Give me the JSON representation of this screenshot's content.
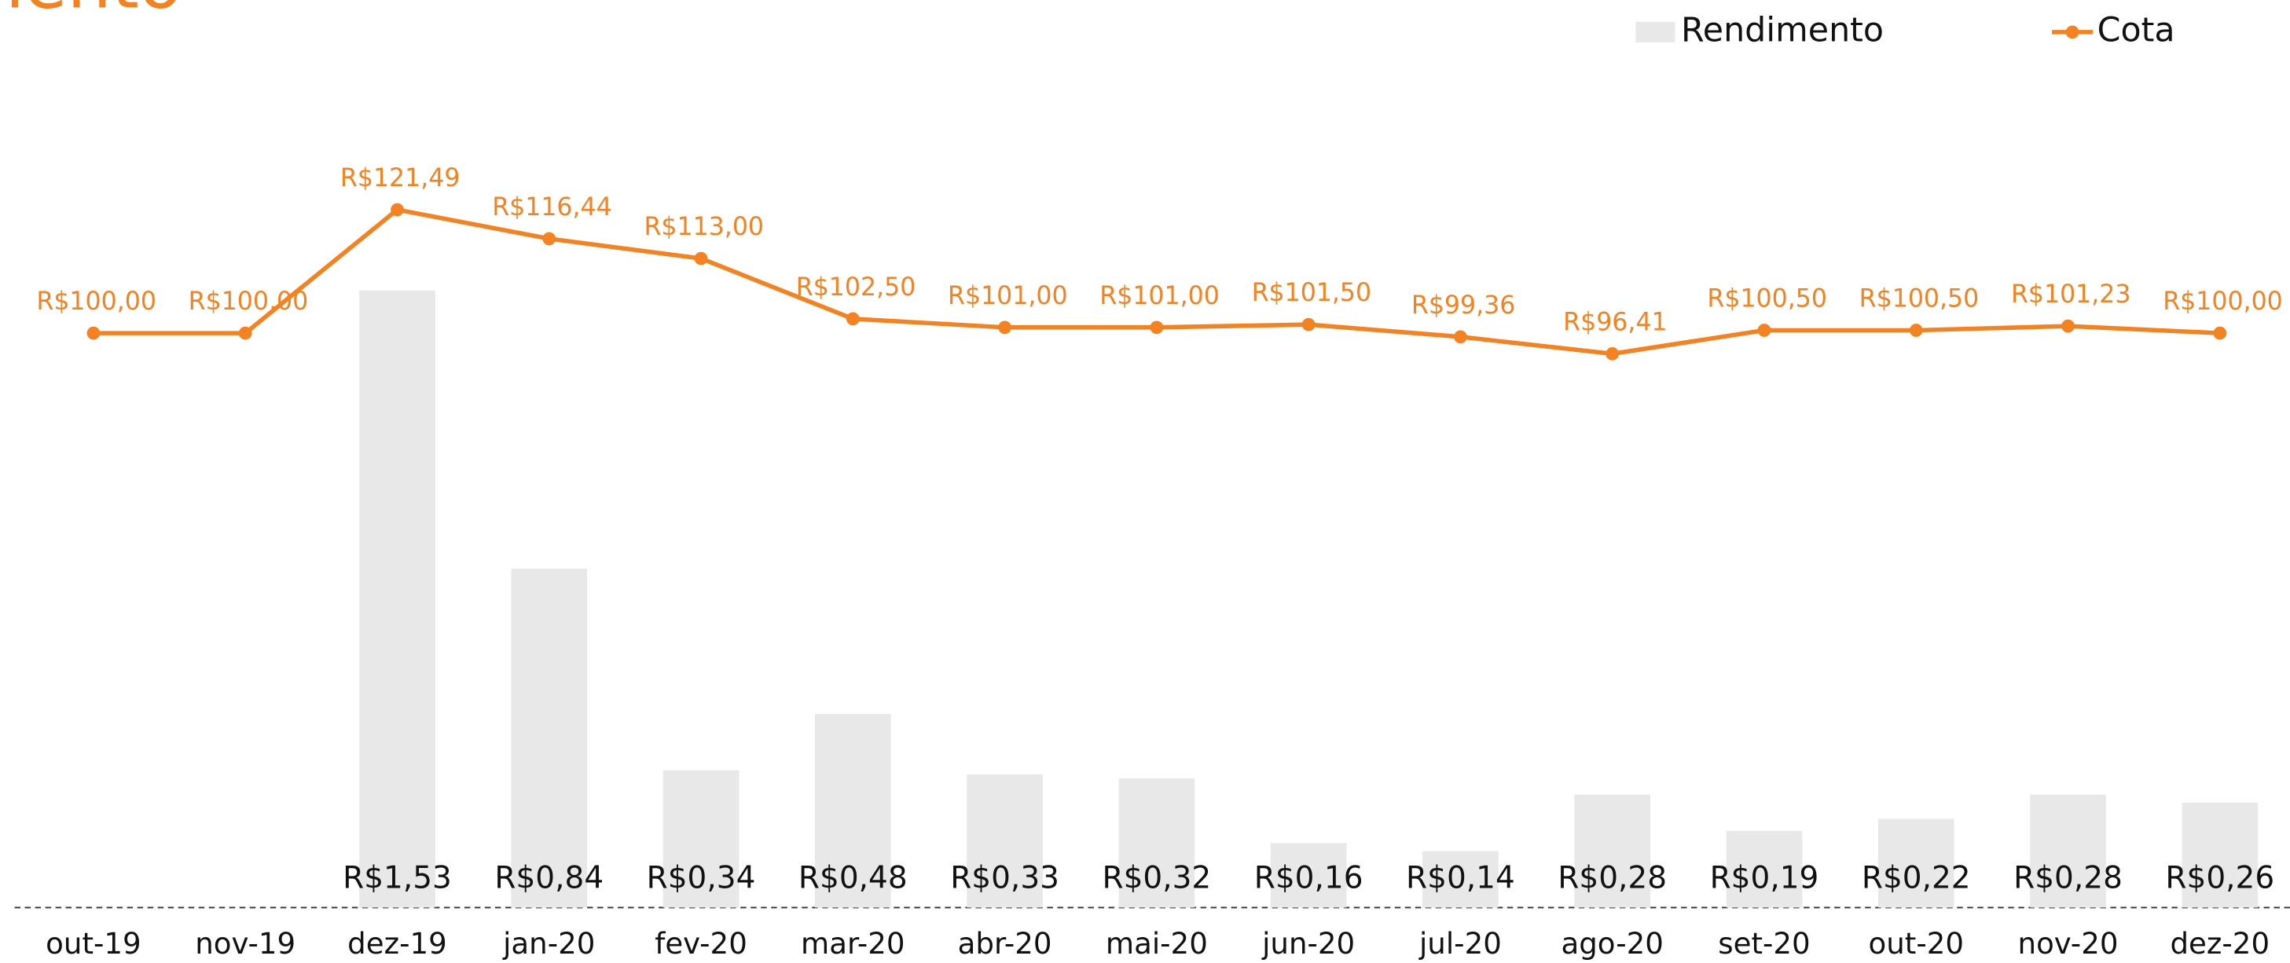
{
  "chart_data": {
    "type": "combo",
    "title": "nento",
    "categories": [
      "out-19",
      "nov-19",
      "dez-19",
      "jan-20",
      "fev-20",
      "mar-20",
      "abr-20",
      "mai-20",
      "jun-20",
      "jul-20",
      "ago-20",
      "set-20",
      "out-20",
      "nov-20",
      "dez-20"
    ],
    "series": [
      {
        "name": "Rendimento",
        "type": "bar",
        "color": "#e8e8e8",
        "values": [
          null,
          null,
          1.53,
          0.84,
          0.34,
          0.48,
          0.33,
          0.32,
          0.16,
          0.14,
          0.28,
          0.19,
          0.22,
          0.28,
          0.26
        ],
        "value_labels": [
          null,
          null,
          "R$1,53",
          "R$0,84",
          "R$0,34",
          "R$0,48",
          "R$0,33",
          "R$0,32",
          "R$0,16",
          "R$0,14",
          "R$0,28",
          "R$0,19",
          "R$0,22",
          "R$0,28",
          "R$0,26"
        ]
      },
      {
        "name": "Cota",
        "type": "line",
        "axis": "y2",
        "color": "#f58220",
        "values": [
          100,
          100,
          121.49,
          116.44,
          113,
          102.5,
          101,
          101,
          101.5,
          99.36,
          96.41,
          100.5,
          100.5,
          101.23,
          100
        ],
        "value_labels": [
          "R$100,00",
          "R$100,00",
          "R$121,49",
          "R$116,44",
          "R$113,00",
          "R$102,50",
          "R$101,00",
          "R$101,00",
          "R$101,50",
          "R$99,36",
          "R$96,41",
          "R$100,50",
          "R$100,50",
          "R$101,23",
          "R$100,00"
        ]
      }
    ],
    "ylim": [
      0,
      2.25
    ],
    "y2lim": [
      0,
      158
    ],
    "grid": false,
    "legend": "top-right"
  }
}
